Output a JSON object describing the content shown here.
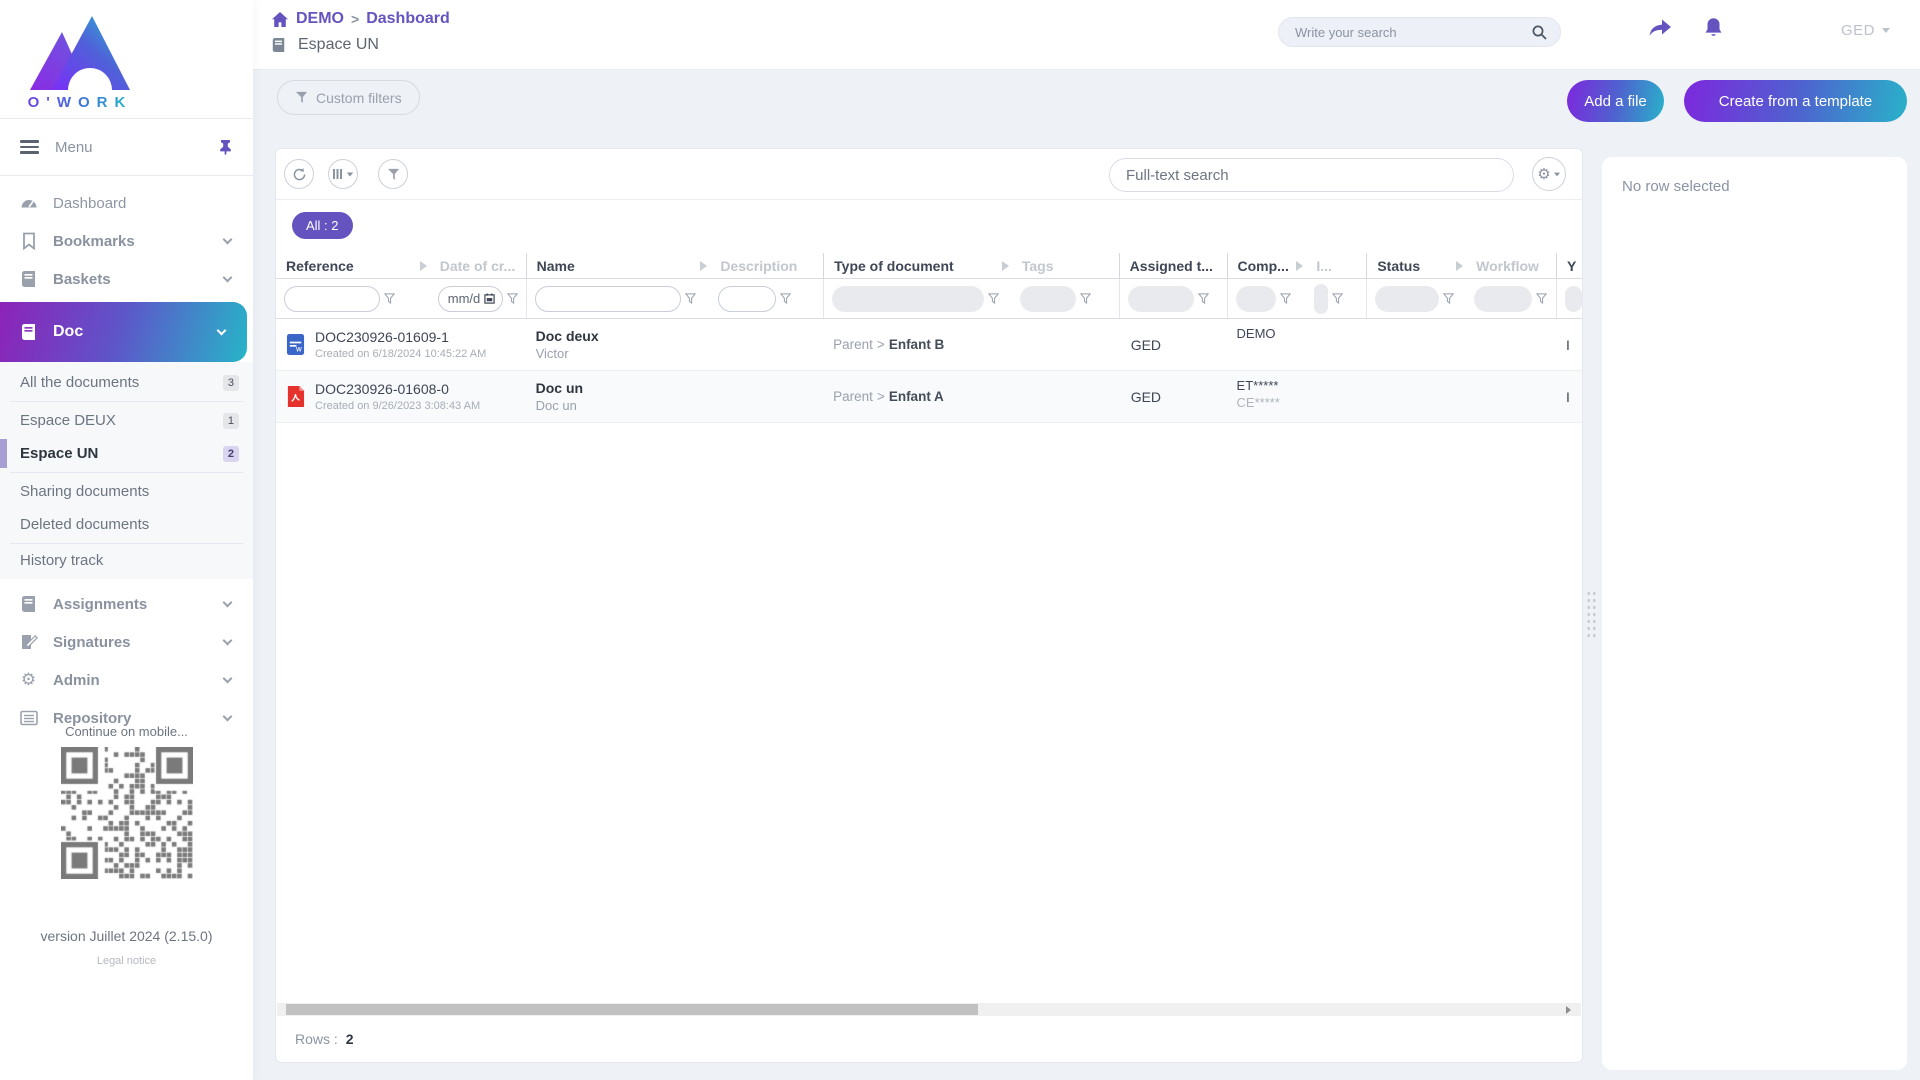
{
  "brand": {
    "name": "O'WORK"
  },
  "header": {
    "breadcrumb": {
      "root": "DEMO",
      "separator": ">",
      "current": "Dashboard"
    },
    "space_title": "Espace UN",
    "search_placeholder": "Write your search",
    "user_label": "GED"
  },
  "actions": {
    "custom_filters": "Custom filters",
    "add_file": "Add a file",
    "create_template": "Create from a template"
  },
  "sidebar": {
    "menu_label": "Menu",
    "items": [
      {
        "label": "Dashboard"
      },
      {
        "label": "Bookmarks"
      },
      {
        "label": "Baskets"
      },
      {
        "label": "Doc"
      },
      {
        "label": "Assignments"
      },
      {
        "label": "Signatures"
      },
      {
        "label": "Admin"
      },
      {
        "label": "Repository"
      }
    ],
    "doc_submenu": [
      {
        "label": "All the documents",
        "count": "3"
      },
      {
        "label": "Espace DEUX",
        "count": "1"
      },
      {
        "label": "Espace UN",
        "count": "2"
      },
      {
        "label": "Sharing documents"
      },
      {
        "label": "Deleted documents"
      },
      {
        "label": "History track"
      }
    ],
    "mobile_hint": "Continue on mobile...",
    "version": "version Juillet 2024 (2.15.0)",
    "legal": "Legal notice"
  },
  "toolbar": {
    "fulltext_placeholder": "Full-text search",
    "tab_all": "All : 2"
  },
  "table": {
    "columns": [
      {
        "label": "Reference"
      },
      {
        "label": "Date of cr..."
      },
      {
        "label": "Name"
      },
      {
        "label": "Description"
      },
      {
        "label": "Type of document"
      },
      {
        "label": "Tags"
      },
      {
        "label": "Assigned t..."
      },
      {
        "label": "Comp..."
      },
      {
        "label": "I..."
      },
      {
        "label": "Status"
      },
      {
        "label": "Workflow"
      },
      {
        "label": "Y"
      }
    ],
    "date_filter_placeholder": "mm/d",
    "type_separator": ">",
    "rows": [
      {
        "reference": "DOC230926-01609-1",
        "created": "Created on 6/18/2024 10:45:22 AM",
        "name": "Doc deux",
        "subname": "Victor",
        "file_kind": "word",
        "type_parent": "Parent",
        "type_child": "Enfant B",
        "assigned": "GED",
        "company": "DEMO",
        "company2": "",
        "edge": "I"
      },
      {
        "reference": "DOC230926-01608-0",
        "created": "Created on 9/26/2023 3:08:43 AM",
        "name": "Doc un",
        "subname": "Doc un",
        "file_kind": "pdf",
        "type_parent": "Parent",
        "type_child": "Enfant A",
        "assigned": "GED",
        "company": "ET*****",
        "company2": "CE*****",
        "edge": "I"
      }
    ],
    "footer": {
      "rows_label": "Rows :",
      "rows_count": "2"
    }
  },
  "details_panel": {
    "empty_text": "No row selected"
  },
  "colors": {
    "accent": "#6554c0",
    "gradient_start": "#8d23b8",
    "gradient_end": "#27b4c8",
    "background": "#eef1f6",
    "pdf_red": "#e5322d",
    "word_blue": "#3a66c9"
  }
}
